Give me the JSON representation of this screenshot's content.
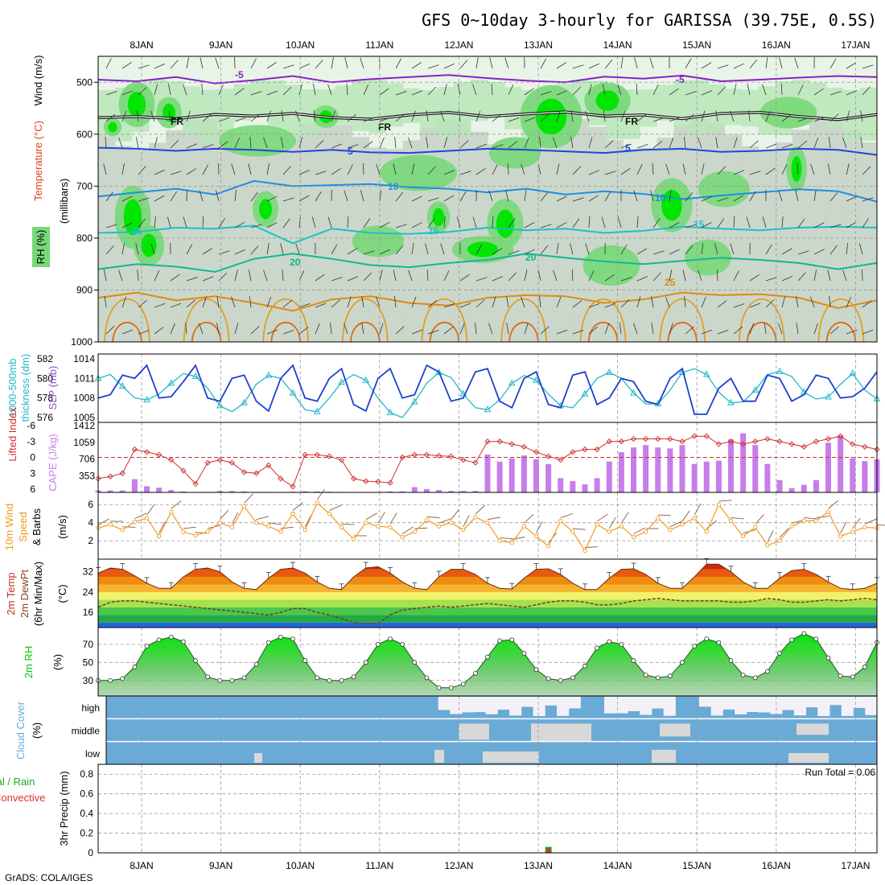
{
  "title": "GFS 0~10day 3-hourly for GARISSA (39.75E, 0.5S)",
  "footer": "GrADS: COLA/IGES",
  "run_total": "Run Total = 0.06",
  "colors": {
    "rh_dark": "#00e600",
    "rh_mid": "#78d878",
    "rh_light": "#b9e6b9",
    "rh_grey": "#c8d4c8",
    "rh_pale": "#e9f4e9",
    "slp": "#1f3fd0",
    "thick": "#22b8c8",
    "cape_bar": "#c77dea",
    "li": "#d03030",
    "wind": "#f29a1c",
    "barb": "#8b5a3c",
    "rh2m": "#00d000",
    "cloud": "#6aaad6",
    "cloud_gap": "#d8d8d8",
    "rain": "#22aa22",
    "conv": "#e03030"
  },
  "chart_data": [
    {
      "id": "upper_air",
      "type": "heatmap",
      "title": "",
      "ylabel": "Wind (m/s)",
      "ylabel2": "Temperature (°C)",
      "ylabel3": "RH (%)",
      "ylabel4": "(millibars)",
      "y_ticks": [
        "500",
        "600",
        "700",
        "800",
        "900",
        "1000"
      ],
      "x_ticks_top": [
        "8JAN",
        "9JAN",
        "10JAN",
        "11JAN",
        "12JAN",
        "13JAN",
        "14JAN",
        "15JAN",
        "16JAN",
        "17JAN"
      ],
      "ylim": [
        450,
        1000
      ],
      "contour_labels": [
        "-5",
        "-5",
        "FR",
        "FR",
        "FR",
        "5",
        "5",
        "10",
        "10",
        "15",
        "15",
        "15",
        "20",
        "20",
        "25"
      ],
      "isotherms": [
        {
          "label": "-5",
          "p": [
            495,
            498,
            490,
            502,
            496,
            488,
            500,
            494,
            490,
            486,
            492,
            497,
            500,
            489,
            493,
            487,
            498,
            495,
            491,
            488,
            490
          ]
        },
        {
          "label": "FR",
          "p": [
            568,
            566,
            570,
            562,
            565,
            560,
            568,
            571,
            563,
            558,
            566,
            561,
            557,
            565,
            563,
            570,
            560,
            558,
            566,
            572,
            562
          ]
        },
        {
          "label": "5",
          "p": [
            626,
            628,
            632,
            628,
            630,
            634,
            630,
            635,
            636,
            632,
            628,
            630,
            633,
            636,
            630,
            628,
            634,
            632,
            628,
            630,
            640
          ]
        },
        {
          "label": "10",
          "p": [
            720,
            712,
            705,
            716,
            690,
            700,
            698,
            696,
            702,
            705,
            712,
            705,
            716,
            710,
            715,
            725,
            718,
            712,
            706,
            710,
            730
          ]
        },
        {
          "label": "15",
          "p": [
            790,
            788,
            780,
            782,
            776,
            810,
            782,
            790,
            792,
            788,
            780,
            785,
            782,
            790,
            786,
            778,
            782,
            785,
            780,
            778,
            780
          ]
        },
        {
          "label": "20",
          "p": [
            860,
            850,
            855,
            865,
            840,
            830,
            840,
            852,
            856,
            848,
            842,
            830,
            838,
            845,
            850,
            844,
            838,
            842,
            848,
            860,
            848
          ]
        },
        {
          "label": "25",
          "p": [
            915,
            905,
            920,
            912,
            925,
            940,
            918,
            912,
            925,
            930,
            915,
            910,
            912,
            925,
            918,
            905,
            910,
            908,
            915,
            935,
            920
          ]
        }
      ]
    },
    {
      "id": "slp_thickness",
      "type": "line",
      "ylabel": "1000-500mb thickness (dm)",
      "ylabel2": "SLP (mb)",
      "y_ticks_left": [
        "582",
        "580",
        "578",
        "576"
      ],
      "y_ticks_right": [
        "1014",
        "1011",
        "1008",
        "1005"
      ],
      "series": [
        {
          "name": "SLP",
          "values": [
            1008.0,
            1008.5,
            1011.5,
            1011.0,
            1013.0,
            1008.0,
            1008.2,
            1010.5,
            1013.0,
            1008.0,
            1007.5,
            1011.0,
            1011.5,
            1007.5,
            1006.0,
            1011.0,
            1013.0,
            1008.0,
            1007.5,
            1011.0,
            1012.5,
            1007.0,
            1006.0,
            1011.0,
            1012.5,
            1008.0,
            1008.5,
            1013.0,
            1012.0,
            1007.5,
            1008.0,
            1012.0,
            1012.5,
            1007.5,
            1006.5,
            1011.0,
            1012.0,
            1007.0,
            1006.5,
            1011.5,
            1012.0,
            1007.0,
            1008.0,
            1011.0,
            1010.5,
            1007.5,
            1007.0,
            1011.0,
            1012.5,
            1005.5,
            1005.5,
            1009.5,
            1011.0,
            1007.5,
            1007.5,
            1011.5,
            1011.0,
            1007.5,
            1008.5,
            1011.5,
            1011.0,
            1008.0,
            1008.2,
            1009.5,
            1012.0
          ]
        },
        {
          "name": "thickness",
          "values": [
            580.0,
            580.4,
            579.2,
            578.0,
            577.8,
            578.4,
            579.5,
            580.5,
            580.2,
            579.0,
            577.2,
            576.6,
            577.5,
            579.4,
            580.3,
            580.0,
            578.5,
            576.8,
            576.6,
            578.0,
            579.6,
            580.4,
            579.8,
            578.0,
            576.5,
            576.0,
            577.6,
            579.5,
            580.6,
            580.1,
            578.4,
            577.0,
            576.8,
            577.8,
            579.5,
            580.3,
            579.8,
            578.4,
            577.2,
            577.0,
            578.4,
            580.0,
            580.6,
            580.0,
            578.5,
            577.4,
            577.4,
            578.8,
            580.6,
            581.0,
            580.4,
            578.6,
            577.5,
            577.6,
            578.8,
            580.4,
            580.7,
            580.2,
            578.6,
            577.9,
            578.1,
            579.4,
            580.5,
            578.8,
            577.9
          ]
        }
      ]
    },
    {
      "id": "cape_li",
      "type": "bar",
      "ylabel": "Lifted Index",
      "ylabel2": "CAPE (J/kg)",
      "y_ticks_left": [
        "-6",
        "-3",
        "0",
        "3",
        "6"
      ],
      "y_ticks_right": [
        "1412",
        "1059",
        "706",
        "353"
      ],
      "series": [
        {
          "name": "CAPE",
          "values": [
            40,
            40,
            40,
            280,
            130,
            100,
            50,
            20,
            5,
            10,
            30,
            30,
            20,
            10,
            10,
            5,
            15,
            25,
            20,
            15,
            10,
            5,
            5,
            10,
            20,
            20,
            110,
            70,
            50,
            30,
            30,
            30,
            800,
            650,
            720,
            780,
            700,
            600,
            300,
            240,
            170,
            300,
            650,
            850,
            950,
            1000,
            950,
            930,
            1000,
            600,
            650,
            670,
            1120,
            1250,
            1000,
            600,
            260,
            90,
            160,
            260,
            1050,
            1200,
            720,
            660,
            700
          ]
        },
        {
          "name": "LI",
          "values": [
            4.0,
            3.6,
            3.0,
            -1.5,
            -1.0,
            -0.5,
            0.5,
            2.5,
            5.0,
            1.0,
            0.5,
            1.0,
            2.8,
            3.0,
            1.5,
            4.0,
            5.5,
            -0.5,
            -0.5,
            -0.2,
            0.5,
            4.0,
            4.5,
            4.6,
            4.8,
            0.0,
            -0.5,
            -0.5,
            -0.3,
            -0.2,
            0.5,
            1.0,
            -3.0,
            -3.0,
            -2.5,
            -2.0,
            -1.0,
            -0.2,
            0.5,
            -1.0,
            -1.5,
            -1.5,
            -3.0,
            -3.0,
            -3.5,
            -3.5,
            -3.5,
            -3.5,
            -3.0,
            -4.0,
            -4.0,
            -2.5,
            -3.0,
            -2.5,
            -3.0,
            -3.5,
            -3.0,
            -2.5,
            -2.0,
            -3.0,
            -3.5,
            -4.0,
            -2.5,
            -2.0,
            -1.5
          ]
        }
      ]
    },
    {
      "id": "wind10m",
      "type": "line",
      "ylabel": "10m Wind Speed & Barbs (m/s)",
      "y_ticks": [
        "6",
        "4",
        "2"
      ],
      "series": [
        {
          "name": "speed",
          "values": [
            3.4,
            3.8,
            3.2,
            4.1,
            4.5,
            2.5,
            5.2,
            3.0,
            2.6,
            3.0,
            4.0,
            3.5,
            5.8,
            4.0,
            3.6,
            3.0,
            5.0,
            3.2,
            6.2,
            5.0,
            3.5,
            2.2,
            4.0,
            3.6,
            3.5,
            2.4,
            3.0,
            4.3,
            3.6,
            4.0,
            3.2,
            4.6,
            4.0,
            2.0,
            1.8,
            3.6,
            2.5,
            1.4,
            4.2,
            3.0,
            0.9,
            3.8,
            3.0,
            3.6,
            2.4,
            3.0,
            4.5,
            3.2,
            3.8,
            4.5,
            3.0,
            6.0,
            4.2,
            2.5,
            3.5,
            1.5,
            2.0,
            3.6,
            4.2,
            4.2,
            5.2,
            2.5,
            3.0,
            3.5,
            3.4
          ]
        }
      ]
    },
    {
      "id": "temp2m",
      "type": "area",
      "ylabel": "2m Temp 2m DewPt (6hr Min/Max) (°C)",
      "y_ticks": [
        "32",
        "24",
        "16"
      ],
      "series": [
        {
          "name": "T2m",
          "values": [
            31.5,
            33.5,
            33.0,
            30.5,
            27.5,
            25.5,
            25.5,
            30.0,
            33.0,
            33.5,
            32.0,
            28.0,
            25.5,
            25.0,
            29.5,
            33.0,
            33.5,
            31.5,
            28.0,
            25.5,
            25.0,
            30.0,
            33.5,
            34.0,
            31.5,
            28.0,
            25.5,
            25.0,
            30.0,
            33.0,
            33.0,
            31.0,
            27.5,
            25.5,
            25.2,
            29.5,
            33.0,
            33.2,
            31.0,
            27.5,
            25.0,
            25.0,
            29.5,
            33.0,
            33.2,
            31.0,
            27.5,
            25.5,
            25.5,
            30.0,
            35.0,
            35.0,
            32.0,
            28.0,
            25.5,
            25.5,
            29.5,
            32.5,
            33.0,
            31.0,
            28.0,
            25.5,
            25.0,
            25.5,
            27.5
          ]
        },
        {
          "name": "Td2m",
          "values": [
            18.0,
            20.0,
            20.5,
            20.5,
            20.0,
            19.5,
            19.0,
            18.5,
            18.0,
            17.5,
            17.0,
            16.5,
            16.0,
            15.5,
            15.0,
            16.0,
            17.5,
            17.5,
            16.0,
            15.0,
            13.5,
            12.0,
            11.5,
            11.5,
            15.0,
            17.0,
            17.5,
            18.0,
            18.5,
            18.0,
            18.5,
            19.0,
            19.5,
            19.0,
            18.5,
            18.0,
            19.0,
            20.0,
            20.5,
            20.5,
            20.0,
            19.0,
            19.0,
            19.5,
            20.5,
            21.0,
            21.5,
            21.0,
            20.5,
            20.5,
            20.5,
            20.5,
            20.0,
            20.0,
            20.5,
            21.5,
            21.0,
            20.0,
            20.0,
            20.5,
            21.0,
            20.5,
            21.0,
            21.5,
            21.0
          ]
        }
      ]
    },
    {
      "id": "rh2m",
      "type": "area",
      "ylabel": "2m RH (%)",
      "y_ticks": [
        "70",
        "50",
        "30"
      ],
      "series": [
        {
          "name": "RH",
          "values": [
            30,
            30,
            32,
            45,
            68,
            75,
            78,
            73,
            52,
            34,
            30,
            30,
            33,
            48,
            72,
            78,
            76,
            52,
            33,
            30,
            30,
            34,
            50,
            70,
            76,
            70,
            50,
            33,
            22,
            22,
            26,
            38,
            56,
            74,
            75,
            60,
            42,
            32,
            30,
            33,
            46,
            66,
            73,
            70,
            52,
            36,
            33,
            35,
            50,
            68,
            76,
            72,
            52,
            36,
            33,
            40,
            60,
            75,
            82,
            76,
            55,
            35,
            34,
            45,
            72
          ]
        }
      ]
    },
    {
      "id": "cloud",
      "type": "heatmap",
      "ylabel": "Cloud Cover (%)",
      "levels": [
        "high",
        "middle",
        "low"
      ],
      "high_gaps": [
        0,
        0,
        0,
        0,
        0,
        0,
        0,
        0,
        0,
        0,
        0,
        0,
        0,
        0,
        0,
        0,
        0,
        0,
        0,
        0,
        0,
        0,
        0,
        0,
        0,
        0,
        0,
        0,
        1,
        1,
        1,
        1,
        1,
        1,
        1,
        1,
        1,
        1,
        1,
        1,
        0,
        0,
        1,
        1,
        1,
        1,
        1,
        1,
        0,
        0,
        1,
        1,
        1,
        1,
        1,
        1,
        1,
        1,
        1,
        1,
        1,
        1,
        1,
        1,
        1
      ]
    },
    {
      "id": "precip",
      "type": "bar",
      "ylabel": "Total / Rain Convective",
      "ylabel2": "3hr Precip (mm)",
      "y_ticks": [
        "0.8",
        "0.6",
        "0.4",
        "0.2",
        "0"
      ],
      "ylim": [
        0,
        0.9
      ],
      "values": [
        0,
        0,
        0,
        0,
        0,
        0,
        0,
        0,
        0,
        0,
        0,
        0,
        0,
        0,
        0,
        0,
        0,
        0,
        0,
        0,
        0,
        0,
        0,
        0,
        0,
        0,
        0,
        0,
        0,
        0,
        0,
        0,
        0,
        0,
        0,
        0,
        0,
        0.06,
        0,
        0,
        0,
        0,
        0,
        0,
        0,
        0,
        0,
        0,
        0,
        0,
        0,
        0,
        0,
        0,
        0,
        0,
        0,
        0,
        0,
        0,
        0,
        0,
        0,
        0,
        0
      ]
    }
  ],
  "x_ticks_bottom": [
    "8JAN",
    "9JAN",
    "10JAN",
    "11JAN",
    "12JAN",
    "13JAN",
    "14JAN",
    "15JAN",
    "16JAN",
    "17JAN"
  ],
  "cloud_level_labels": [
    "high",
    "middle",
    "low"
  ],
  "upper_ylabels": [
    "Wind (m/s)",
    "Temperature (°C)",
    "RH (%)",
    "(millibars)"
  ],
  "slp_labels": [
    "1000-500mb",
    "thickness (dm)",
    "SLP (mb)"
  ],
  "cape_labels": [
    "Lifted Index",
    "CAPE (J/kg)"
  ],
  "wind_labels": [
    "10m Wind",
    "Speed",
    "& Barbs",
    "(m/s)"
  ],
  "temp_labels": [
    "2m Temp",
    "2m DewPt",
    "(6hr Min/Max)",
    "(°C)"
  ],
  "rh_labels": [
    "2m RH",
    "(%)"
  ],
  "cloud_labels": [
    "Cloud Cover",
    "(%)"
  ],
  "precip_labels": [
    "tal / Rain",
    "Convective",
    "3hr Precip (mm)"
  ]
}
